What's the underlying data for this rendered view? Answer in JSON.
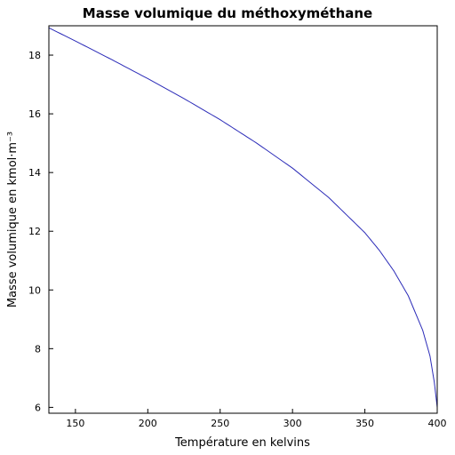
{
  "chart_data": {
    "type": "line",
    "title": "Masse volumique du méthoxyméthane",
    "xlabel": "Température en kelvins",
    "ylabel": "Masse volumique en kmol·m⁻³",
    "xlim": [
      131.65,
      400
    ],
    "ylim": [
      5.8,
      19
    ],
    "xticks": [
      150,
      200,
      250,
      300,
      350,
      400
    ],
    "yticks": [
      6,
      8,
      10,
      12,
      14,
      16,
      18
    ],
    "grid": false,
    "series": [
      {
        "color": "#2b2bb8",
        "x": [
          131.65,
          150,
          175,
          200,
          225,
          250,
          275,
          300,
          325,
          350,
          360,
          370,
          380,
          390,
          395,
          398,
          400
        ],
        "y": [
          18.93,
          18.48,
          17.85,
          17.2,
          16.52,
          15.8,
          15.01,
          14.15,
          13.15,
          11.95,
          11.35,
          10.65,
          9.8,
          8.62,
          7.75,
          6.85,
          6.0
        ]
      }
    ]
  }
}
